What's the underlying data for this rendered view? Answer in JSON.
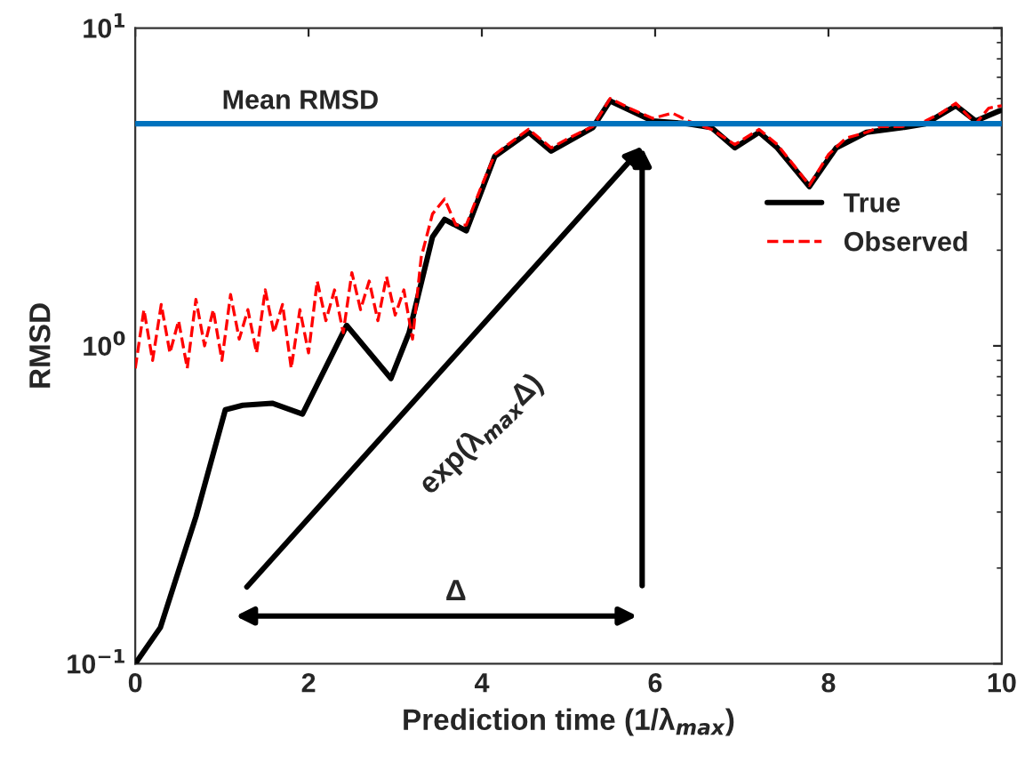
{
  "chart_data": {
    "type": "line",
    "xlabel": "Prediction time (1/λ$_{max}$)",
    "ylabel": "RMSD",
    "log": "y",
    "xlim": [
      0,
      10
    ],
    "ylim": [
      0.1,
      10
    ],
    "xticks": [
      0,
      2,
      4,
      6,
      8,
      10
    ],
    "yticks": [
      {
        "value": 0.1,
        "label": "10$^{−1}$"
      },
      {
        "value": 1,
        "label": "10$^{0}$"
      },
      {
        "value": 10,
        "label": "10$^{1}$"
      }
    ],
    "grid": false,
    "legend": "top right",
    "series": [
      {
        "name": "True",
        "color": "#000000",
        "line_style": "solid",
        "x": [
          0,
          0.29,
          0.7,
          1.04,
          1.24,
          1.58,
          1.93,
          2.44,
          2.95,
          3.16,
          3.43,
          3.57,
          3.82,
          4.15,
          4.54,
          4.8,
          5.28,
          5.48,
          5.97,
          6.38,
          6.65,
          6.92,
          7.2,
          7.41,
          7.78,
          8.09,
          8.44,
          8.85,
          9.12,
          9.47,
          9.7,
          9.98
        ],
        "values": [
          0.1,
          0.13,
          0.29,
          0.63,
          0.65,
          0.66,
          0.61,
          1.16,
          0.79,
          1.1,
          2.2,
          2.5,
          2.3,
          3.95,
          4.7,
          4.1,
          4.86,
          5.9,
          5.1,
          5.0,
          4.86,
          4.2,
          4.7,
          4.2,
          3.17,
          4.2,
          4.7,
          4.86,
          5.0,
          5.7,
          5.1,
          5.5
        ]
      },
      {
        "name": "Observed",
        "color": "#ff0000",
        "line_style": "dashed",
        "x": [
          0,
          0.1,
          0.2,
          0.3,
          0.4,
          0.5,
          0.6,
          0.7,
          0.8,
          0.9,
          1.0,
          1.1,
          1.2,
          1.3,
          1.4,
          1.5,
          1.6,
          1.7,
          1.8,
          1.9,
          2.0,
          2.1,
          2.2,
          2.3,
          2.4,
          2.5,
          2.6,
          2.7,
          2.8,
          2.9,
          3.0,
          3.1,
          3.2,
          3.3,
          3.43,
          3.57,
          3.7,
          3.82,
          4.0,
          4.15,
          4.3,
          4.54,
          4.8,
          5.0,
          5.28,
          5.48,
          5.7,
          5.97,
          6.2,
          6.38,
          6.65,
          6.92,
          7.2,
          7.41,
          7.6,
          7.78,
          8.0,
          8.2,
          8.44,
          8.6,
          8.85,
          9.12,
          9.3,
          9.47,
          9.7,
          9.85,
          10.0
        ],
        "values": [
          0.85,
          1.3,
          0.9,
          1.35,
          0.95,
          1.2,
          0.85,
          1.4,
          1.0,
          1.3,
          0.9,
          1.45,
          1.05,
          1.3,
          0.95,
          1.5,
          1.1,
          1.35,
          0.85,
          1.3,
          0.95,
          1.6,
          1.2,
          1.5,
          1.1,
          1.7,
          1.3,
          1.6,
          1.2,
          1.65,
          1.25,
          1.5,
          1.05,
          1.9,
          2.6,
          2.9,
          2.4,
          2.4,
          3.2,
          4.0,
          4.3,
          4.8,
          4.2,
          4.5,
          4.9,
          6.0,
          5.6,
          5.2,
          5.4,
          5.1,
          4.8,
          4.3,
          4.8,
          4.3,
          3.7,
          3.2,
          4.0,
          4.5,
          4.7,
          4.9,
          4.9,
          5.1,
          5.4,
          5.8,
          5.0,
          5.6,
          5.7
        ]
      }
    ],
    "ref_lines": [
      {
        "axis": "y",
        "value": 5.0,
        "label": "Mean RMSD",
        "color": "#0072bd"
      }
    ],
    "annotations": [
      "exp(λ$_{max}$Δ)",
      "Δ"
    ]
  }
}
